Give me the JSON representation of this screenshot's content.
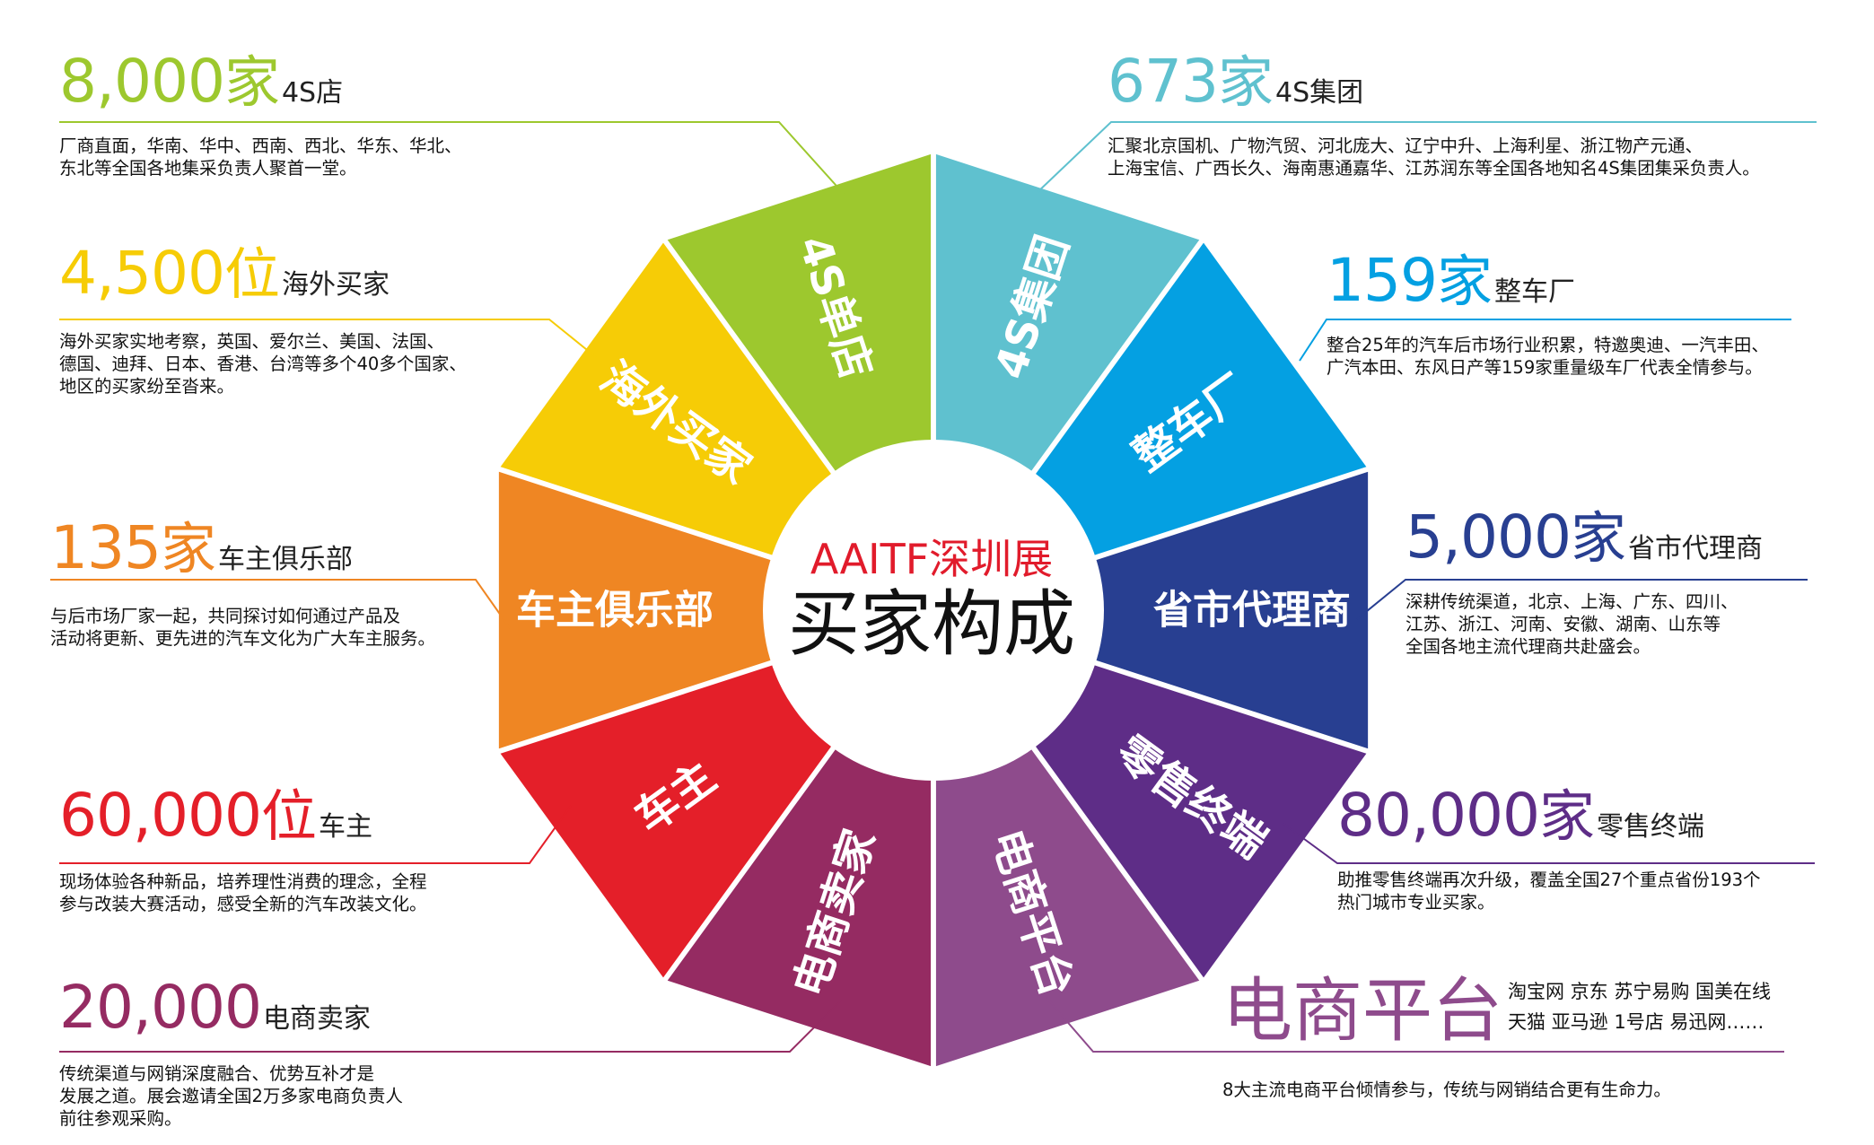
{
  "center": {
    "line1": "AAITF深圳展",
    "line2": "买家构成"
  },
  "segments": [
    {
      "label": "4S集团",
      "color": "#5fc1cf"
    },
    {
      "label": "整车厂",
      "color": "#04a0e2"
    },
    {
      "label": "省市代理商",
      "color": "#283f91"
    },
    {
      "label": "零售终端",
      "color": "#5e2d87"
    },
    {
      "label": "电商平台",
      "color": "#8e4b8c"
    },
    {
      "label": "电商卖家",
      "color": "#952b62"
    },
    {
      "label": "车主",
      "color": "#e41f29"
    },
    {
      "label": "车主俱乐部",
      "color": "#ef8623"
    },
    {
      "label": "海外买家",
      "color": "#f6cc06"
    },
    {
      "label": "4S单店",
      "color": "#9dc82e"
    }
  ],
  "callouts": {
    "s4_shop": {
      "number": "8,000",
      "unit": "家",
      "label": "4S店",
      "color": "#9dc82e",
      "lines": [
        "厂商直面，华南、华中、西南、西北、华东、华北、",
        "东北等全国各地集采负责人聚首一堂。"
      ]
    },
    "overseas": {
      "number": "4,500",
      "unit": "位",
      "label": "海外买家",
      "color": "#f6cc06",
      "lines": [
        "海外买家实地考察，英国、爱尔兰、美国、法国、",
        "德国、迪拜、日本、香港、台湾等多个40多个国家、",
        "地区的买家纷至沓来。"
      ]
    },
    "club": {
      "number": "135",
      "unit": "家",
      "label": "车主俱乐部",
      "color": "#ef8623",
      "lines": [
        "与后市场厂家一起，共同探讨如何通过产品及",
        "活动将更新、更先进的汽车文化为广大车主服务。"
      ]
    },
    "owner": {
      "number": "60,000",
      "unit": "位",
      "label": "车主",
      "color": "#e41f29",
      "lines": [
        "现场体验各种新品，培养理性消费的理念，全程",
        "参与改装大赛活动，感受全新的汽车改装文化。"
      ]
    },
    "seller": {
      "number": "20,000",
      "unit": "",
      "label": "电商卖家",
      "color": "#952b62",
      "lines": [
        "传统渠道与网销深度融合、优势互补才是",
        "发展之道。展会邀请全国2万多家电商负责人",
        "前往参观采购。"
      ]
    },
    "group": {
      "number": "673",
      "unit": "家",
      "label": "4S集团",
      "color": "#5fc1cf",
      "lines": [
        "汇聚北京国机、广物汽贸、河北庞大、辽宁中升、上海利星、浙江物产元通、",
        "上海宝信、广西长久、海南惠通嘉华、江苏润东等全国各地知名4S集团集采负责人。"
      ]
    },
    "oem": {
      "number": "159",
      "unit": "家",
      "label": "整车厂",
      "color": "#04a0e2",
      "lines": [
        "整合25年的汽车后市场行业积累，特邀奥迪、一汽丰田、",
        "广汽本田、东风日产等159家重量级车厂代表全情参与。"
      ]
    },
    "agent": {
      "number": "5,000",
      "unit": "家",
      "label": "省市代理商",
      "color": "#283f91",
      "lines": [
        "深耕传统渠道，北京、上海、广东、四川、",
        "江苏、浙江、河南、安徽、湖南、山东等",
        "全国各地主流代理商共赴盛会。"
      ]
    },
    "retail": {
      "number": "80,000",
      "unit": "家",
      "label": "零售终端",
      "color": "#5e2d87",
      "lines": [
        "助推零售终端再次升级，覆盖全国27个重点省份193个",
        "热门城市专业买家。"
      ]
    },
    "ecom": {
      "number": "",
      "unit": "电商平台",
      "label": "",
      "color": "#8e4b8c",
      "lines": [
        "8大主流电商平台倾情参与，传统与网销结合更有生命力。"
      ],
      "platforms": [
        "淘宝网   京东   苏宁易购   国美在线",
        "天猫   亚马逊   1号店   易迅网……"
      ]
    }
  }
}
